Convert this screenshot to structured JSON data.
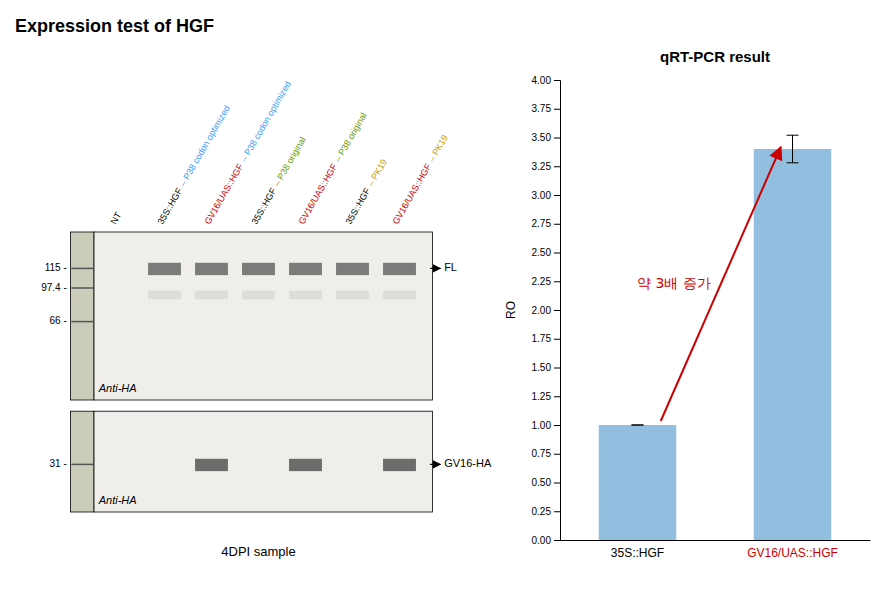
{
  "chart_data": [
    {
      "type": "blot",
      "title": "Expression test of HGF",
      "categories": [
        "NT",
        "35S::HGF",
        "GV16/UAS::HGF",
        "35S::HGF",
        "GV16/UAS::HGF",
        "35S::HGF",
        "GV16/UAS::HGF"
      ],
      "label_colors": [
        "black",
        "black",
        "#CC0000",
        "black",
        "#CC0000",
        "black",
        "#CC0000"
      ],
      "annotations": [
        {
          "text": "– P38 codon optimized",
          "color": "#3399FF"
        },
        {
          "text": "– P38 codon optimized",
          "color": "#3399FF"
        },
        {
          "text": "– P38 original",
          "color": "#669900"
        },
        {
          "text": "– P38 original",
          "color": "#669900"
        },
        {
          "text": "– PK19",
          "color": "#CC9900"
        },
        {
          "text": "– PK19",
          "color": "#CC9900"
        },
        {
          "text": "115 -"
        },
        {
          "text": "97.4 -"
        },
        {
          "text": "66 -"
        },
        {
          "text": "31 -"
        },
        {
          "text": "FL"
        },
        {
          "text": "GV16-HA"
        },
        {
          "text": "Anti-HA"
        },
        {
          "text": "Anti-HA"
        },
        {
          "text": "4DPI sample"
        }
      ]
    },
    {
      "type": "bar",
      "title": "qRT-PCR result",
      "categories": [
        "35S::HGF",
        "GV16/UAS::HGF"
      ],
      "label_colors": [
        "black",
        "#CC0000"
      ],
      "values": [
        1.0,
        3.4
      ],
      "error": [
        0.0,
        0.12
      ],
      "color": "#92BFDF",
      "ylabel": "RO",
      "ylim": [
        0,
        4.0
      ],
      "yticks": [
        {
          "value": 0.0,
          "label": "0.00"
        },
        {
          "value": 0.25,
          "label": "0.25"
        },
        {
          "value": 0.5,
          "label": "0.50"
        },
        {
          "value": 0.75,
          "label": "0.75"
        },
        {
          "value": 1.0,
          "label": "1.00"
        },
        {
          "value": 1.25,
          "label": "1.25"
        },
        {
          "value": 1.5,
          "label": "1.50"
        },
        {
          "value": 1.75,
          "label": "1.75"
        },
        {
          "value": 2.0,
          "label": "2.00"
        },
        {
          "value": 2.25,
          "label": "2.25"
        },
        {
          "value": 2.5,
          "label": "2.50"
        },
        {
          "value": 2.75,
          "label": "2.75"
        },
        {
          "value": 3.0,
          "label": "3.00"
        },
        {
          "value": 3.25,
          "label": "3.25"
        },
        {
          "value": 3.5,
          "label": "3.50"
        },
        {
          "value": 3.75,
          "label": "3.75"
        },
        {
          "value": 4.0,
          "label": "4.00"
        }
      ],
      "grid": false,
      "annotations": [
        {
          "text": "약 3배 증가",
          "color": "#CC0000"
        }
      ]
    }
  ]
}
